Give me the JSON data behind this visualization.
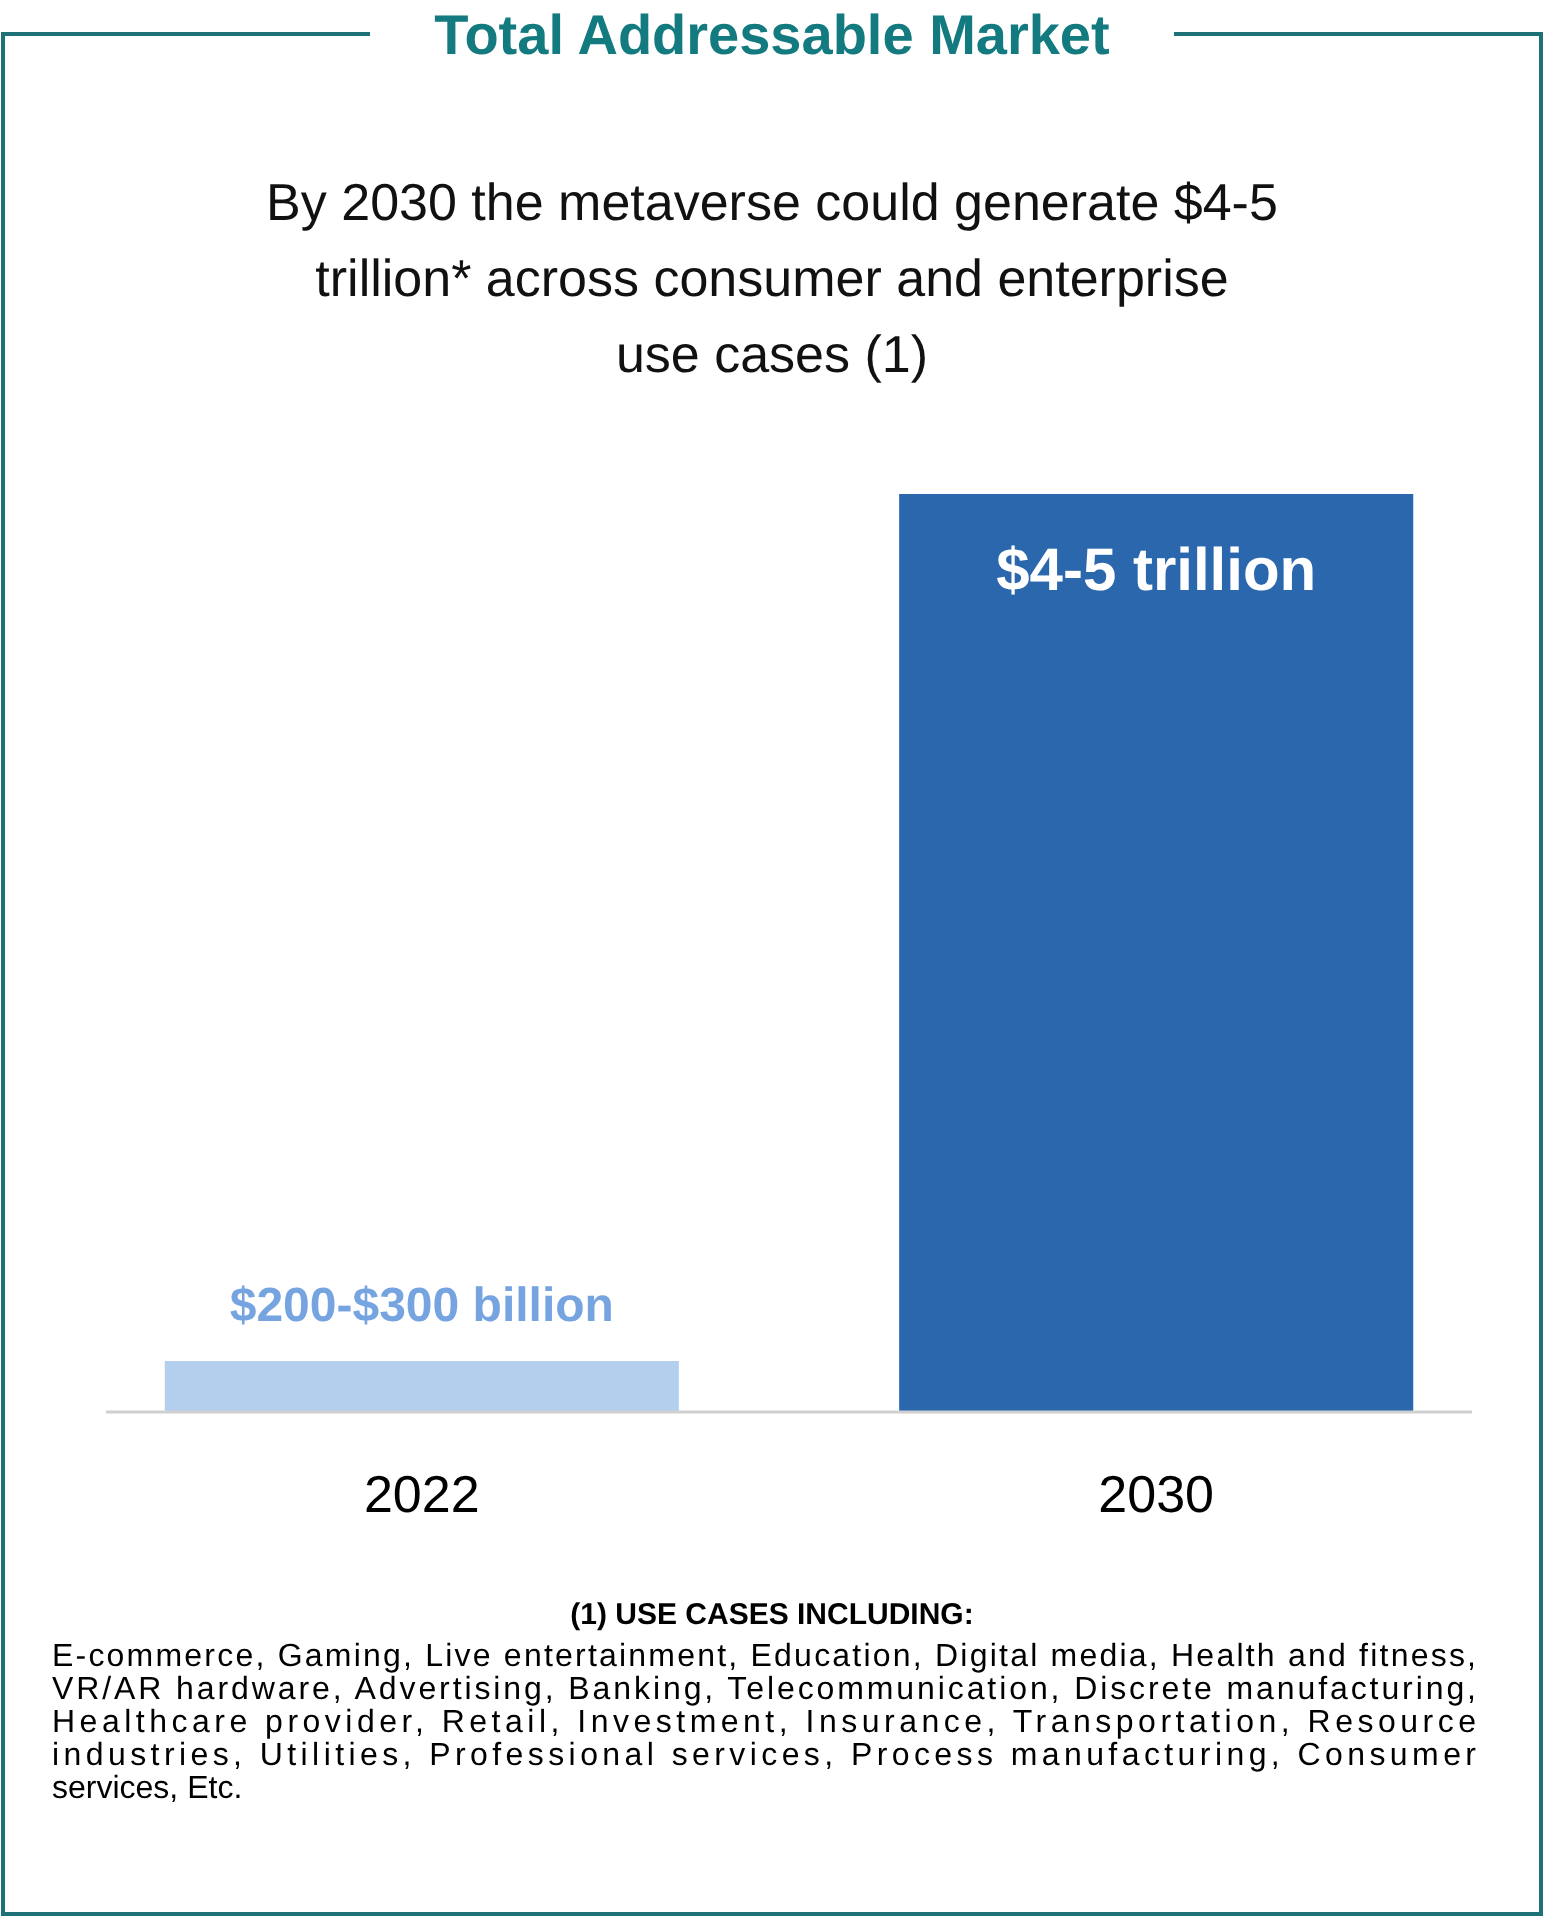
{
  "chart_data": {
    "type": "bar",
    "title": "Total Addressable Market",
    "subtitle": "By 2030 the metaverse could generate $4-5 trillion* across consumer and enterprise use cases (1)",
    "categories": [
      "2022",
      "2030"
    ],
    "values": [
      0.25,
      4.5
    ],
    "colors": [
      "#b4cfee",
      "#2a67ad"
    ],
    "value_labels": [
      "$200-$300 billion",
      "$4-5 trillion"
    ],
    "annotations": [
      "(1) USE CASES INCLUDING:",
      "E-commerce, Gaming, Live entertainment, Education, Digital media, Health and fitness, VR/AR hardware, Advertising, Banking, Telecommunication, Discrete manufacturing, Healthcare provider, Retail, Investment, Insurance, Transportation, Resource industries, Utilities, Professional services, Process manufacturing, Consumer services, Etc."
    ]
  }
}
